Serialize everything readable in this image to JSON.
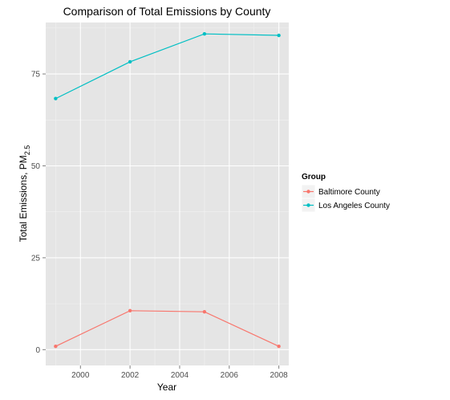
{
  "chart_data": {
    "type": "line",
    "title": "Comparison of Total Emissions by County",
    "xlabel": "Year",
    "ylabel_main": "Total Emissions, PM",
    "ylabel_sub": "2.5",
    "x": [
      1999,
      2002,
      2005,
      2008
    ],
    "xlim": [
      1998.6,
      2008.4
    ],
    "ylim": [
      -4.3,
      89
    ],
    "x_ticks": [
      2000,
      2002,
      2004,
      2006,
      2008
    ],
    "y_ticks": [
      0,
      25,
      50,
      75
    ],
    "grid": true,
    "legend": {
      "title": "Group",
      "position": "right"
    },
    "series": [
      {
        "name": "Baltimore County",
        "color": "#F8766D",
        "values": [
          0.9,
          10.6,
          10.3,
          0.9
        ]
      },
      {
        "name": "Los Angeles County",
        "color": "#00BFC4",
        "values": [
          68.3,
          78.3,
          85.9,
          85.5
        ]
      }
    ]
  }
}
